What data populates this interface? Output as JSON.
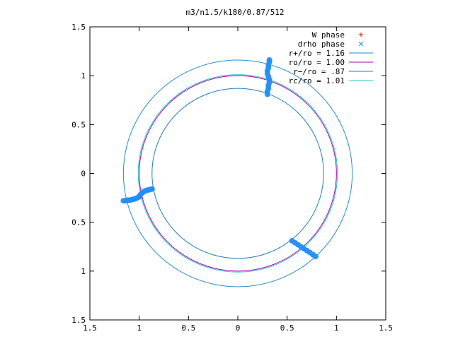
{
  "chart_data": {
    "type": "scatter",
    "title": "m3/n1.5/k180/0.87/512",
    "xlabel": "",
    "ylabel": "",
    "xlim": [
      -1.5,
      1.5
    ],
    "ylim": [
      -1.5,
      1.5
    ],
    "x_ticks": [
      -1.5,
      -1,
      -0.5,
      0,
      0.5,
      1,
      1.5
    ],
    "y_ticks": [
      -1.5,
      -1,
      -0.5,
      0,
      0.5,
      1,
      1.5
    ],
    "x_tick_labels": [
      "1.5",
      "1",
      "0.5",
      "0",
      "0.5",
      "1",
      "1.5"
    ],
    "y_tick_labels": [
      "1.5",
      "1",
      "0.5",
      "0",
      "0.5",
      "1",
      "1.5"
    ],
    "grid": false,
    "legend_position": "top-right",
    "series": [
      {
        "name": "W phase",
        "kind": "points",
        "marker": "plus",
        "color": "#ff0000",
        "points": [
          [
            -1.15,
            -0.28
          ],
          [
            -1.1,
            -0.275
          ],
          [
            -1.05,
            -0.26
          ],
          [
            -1.0,
            -0.24
          ],
          [
            -0.96,
            -0.19
          ],
          [
            -0.92,
            -0.17
          ],
          [
            -0.87,
            -0.16
          ],
          [
            0.3,
            0.82
          ],
          [
            0.31,
            0.88
          ],
          [
            0.32,
            0.94
          ],
          [
            0.31,
            1.0
          ],
          [
            0.3,
            1.04
          ],
          [
            0.31,
            1.1
          ],
          [
            0.32,
            1.14
          ],
          [
            0.54,
            -0.69
          ],
          [
            0.6,
            -0.73
          ],
          [
            0.66,
            -0.77
          ],
          [
            0.71,
            -0.8
          ],
          [
            0.76,
            -0.84
          ]
        ]
      },
      {
        "name": "drho phase",
        "kind": "points",
        "marker": "cross",
        "color": "#1f8fff",
        "points": [
          [
            -1.16,
            -0.28
          ],
          [
            -1.14,
            -0.28
          ],
          [
            -1.12,
            -0.275
          ],
          [
            -1.1,
            -0.275
          ],
          [
            -1.08,
            -0.27
          ],
          [
            -1.06,
            -0.265
          ],
          [
            -1.04,
            -0.26
          ],
          [
            -1.02,
            -0.25
          ],
          [
            -1.0,
            -0.24
          ],
          [
            -0.99,
            -0.22
          ],
          [
            -0.97,
            -0.2
          ],
          [
            -0.95,
            -0.185
          ],
          [
            -0.93,
            -0.175
          ],
          [
            -0.91,
            -0.17
          ],
          [
            -0.89,
            -0.165
          ],
          [
            -0.87,
            -0.16
          ],
          [
            0.3,
            0.81
          ],
          [
            0.3,
            0.84
          ],
          [
            0.31,
            0.87
          ],
          [
            0.31,
            0.9
          ],
          [
            0.32,
            0.93
          ],
          [
            0.32,
            0.96
          ],
          [
            0.31,
            0.99
          ],
          [
            0.3,
            1.02
          ],
          [
            0.3,
            1.05
          ],
          [
            0.31,
            1.08
          ],
          [
            0.31,
            1.11
          ],
          [
            0.32,
            1.14
          ],
          [
            0.32,
            1.16
          ],
          [
            0.55,
            -0.69
          ],
          [
            0.58,
            -0.71
          ],
          [
            0.61,
            -0.73
          ],
          [
            0.64,
            -0.75
          ],
          [
            0.67,
            -0.77
          ],
          [
            0.7,
            -0.79
          ],
          [
            0.73,
            -0.81
          ],
          [
            0.76,
            -0.83
          ],
          [
            0.79,
            -0.85
          ]
        ]
      },
      {
        "name": "r+/ro = 1.16",
        "kind": "circle",
        "radius": 1.16,
        "color": "#1f8fcf"
      },
      {
        "name": "ro/ro = 1.00",
        "kind": "circle",
        "radius": 1.0,
        "color": "#b000b0"
      },
      {
        "name": "r−/ro = .87",
        "kind": "circle",
        "radius": 0.87,
        "color": "#1f7fbf"
      },
      {
        "name": "rc/ro = 1.01",
        "kind": "circle",
        "radius": 1.01,
        "color": "#20c8c8"
      }
    ]
  }
}
